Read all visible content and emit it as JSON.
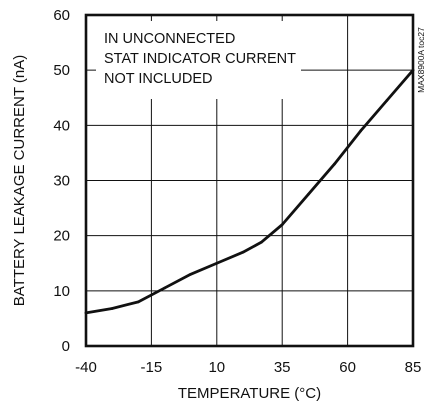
{
  "chart_data": {
    "type": "line",
    "title": "",
    "xlabel": "TEMPERATURE (°C)",
    "ylabel": "BATTERY LEAKAGE CURRENT (nA)",
    "xlim": [
      -40,
      85
    ],
    "ylim": [
      0,
      60
    ],
    "x_ticks": [
      "-40",
      "-15",
      "10",
      "35",
      "60",
      "85"
    ],
    "y_ticks": [
      "0",
      "10",
      "20",
      "30",
      "40",
      "50",
      "60"
    ],
    "grid": true,
    "legend": "none",
    "annotation_lines": [
      "IN UNCONNECTED",
      "STAT INDICATOR CURRENT",
      "NOT INCLUDED"
    ],
    "side_label": "MAX8900A toc27",
    "line_color": "#111111",
    "series": [
      {
        "values": [
          {
            "x": -40,
            "y": 6.0
          },
          {
            "x": -30,
            "y": 6.8
          },
          {
            "x": -20,
            "y": 8.0
          },
          {
            "x": -10,
            "y": 10.5
          },
          {
            "x": 0,
            "y": 13.0
          },
          {
            "x": 10,
            "y": 15.0
          },
          {
            "x": 20,
            "y": 17.0
          },
          {
            "x": 27,
            "y": 18.8
          },
          {
            "x": 35,
            "y": 22.0
          },
          {
            "x": 45,
            "y": 27.5
          },
          {
            "x": 55,
            "y": 33.0
          },
          {
            "x": 65,
            "y": 39.0
          },
          {
            "x": 75,
            "y": 44.5
          },
          {
            "x": 85,
            "y": 50.0
          }
        ]
      }
    ]
  }
}
